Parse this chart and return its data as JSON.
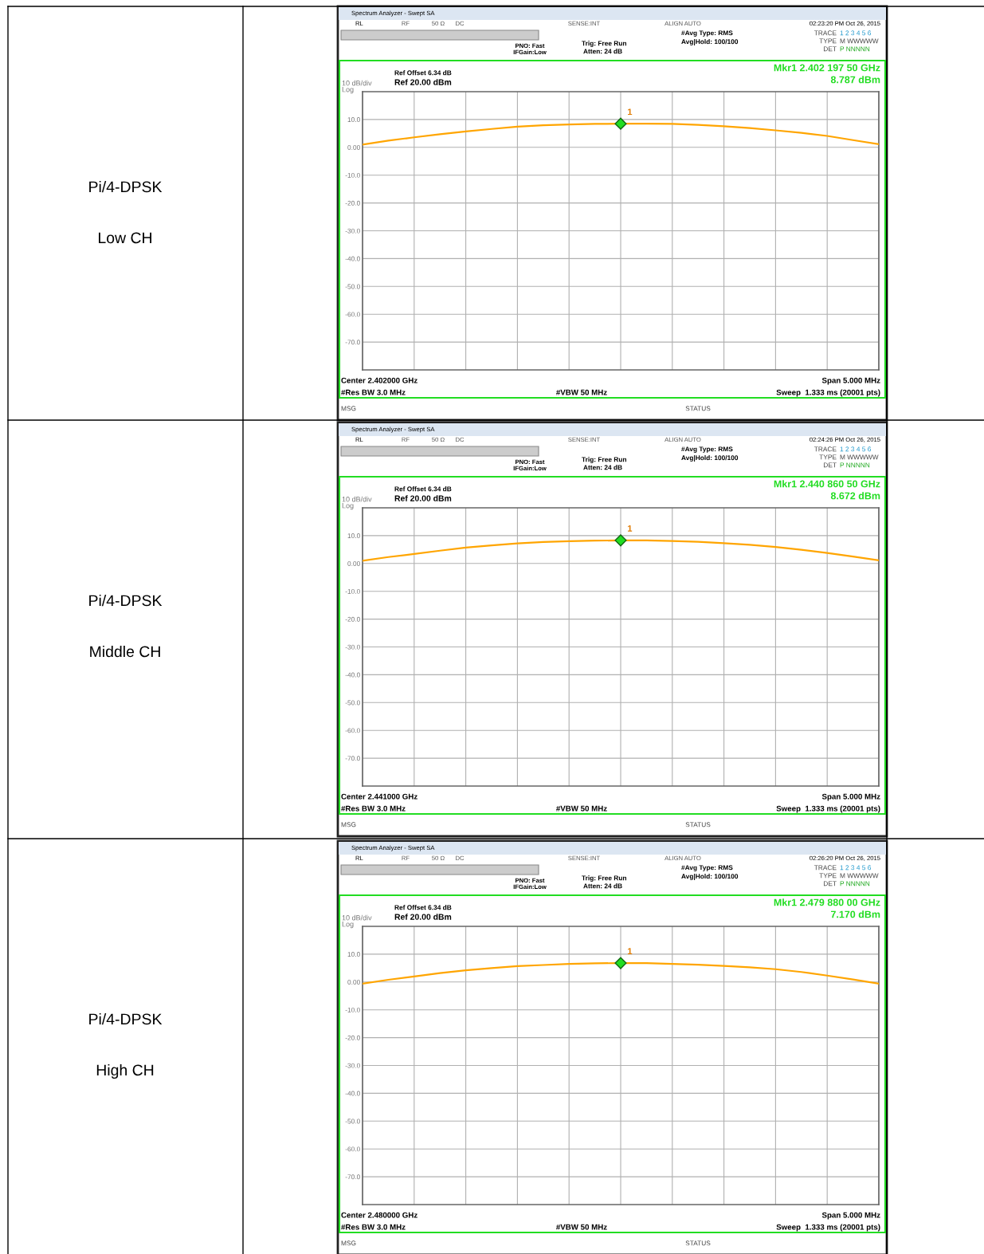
{
  "chart_data": [
    {
      "type": "line",
      "categories": [
        null,
        null,
        null,
        null,
        null,
        null,
        null,
        null,
        null,
        null,
        null,
        null,
        null,
        null,
        null,
        null,
        null,
        null,
        null,
        null,
        null
      ],
      "ylim": [
        -80,
        20
      ],
      "yticks": [
        {
          "value": 10,
          "label": "10.0"
        },
        {
          "value": 0,
          "label": "0.00"
        },
        {
          "value": -10,
          "label": "-10.0"
        },
        {
          "value": -20,
          "label": "-20.0"
        },
        {
          "value": -30,
          "label": "-30.0"
        },
        {
          "value": -40,
          "label": "-40.0"
        },
        {
          "value": -50,
          "label": "-50.0"
        },
        {
          "value": -60,
          "label": "-60.0"
        },
        {
          "value": -70,
          "label": "-70.0"
        }
      ],
      "tick_labels": "y",
      "grid": true,
      "series": [
        {
          "color": "#ffa500",
          "values": [
            1.0,
            2.4,
            3.6,
            4.7,
            5.7,
            6.6,
            7.4,
            7.9,
            8.2,
            8.4,
            8.5,
            8.5,
            8.4,
            8.1,
            7.6,
            6.9,
            6.1,
            5.2,
            4.1,
            2.6,
            1.1
          ]
        }
      ],
      "annotations": [
        "Spectrum Analyzer - Swept SA",
        "RL",
        "RF",
        "50 Ω",
        "DC",
        "SENSE:INT",
        "ALIGN AUTO",
        "02:23:20 PM Oct 26, 2015",
        "PNO: Fast",
        "IFGain:Low",
        "Trig: Free Run",
        "Atten: 24 dB",
        "#Avg Type: RMS",
        "Avg|Hold: 100/100",
        "TRACE",
        "1 2 3 4 5 6",
        "TYPE",
        "M WWWWW",
        "DET",
        "P NNNNN",
        "Ref Offset 6.34 dB",
        "Ref 20.00 dBm",
        "10 dB/div",
        "Log",
        "Mkr1 2.402 197 50 GHz",
        "8.787 dBm",
        "Center 2.402000 GHz",
        "Span 5.000 MHz",
        "#Res BW 3.0 MHz",
        "#VBW 50 MHz",
        "Sweep  1.333 ms (20001 pts)",
        "MSG",
        "STATUS",
        "1",
        "Pi/4-DPSK",
        "Low CH"
      ]
    },
    {
      "type": "line",
      "categories": [
        null,
        null,
        null,
        null,
        null,
        null,
        null,
        null,
        null,
        null,
        null,
        null,
        null,
        null,
        null,
        null,
        null,
        null,
        null,
        null,
        null
      ],
      "ylim": [
        -80,
        20
      ],
      "yticks": [
        {
          "value": 10,
          "label": "10.0"
        },
        {
          "value": 0,
          "label": "0.00"
        },
        {
          "value": -10,
          "label": "-10.0"
        },
        {
          "value": -20,
          "label": "-20.0"
        },
        {
          "value": -30,
          "label": "-30.0"
        },
        {
          "value": -40,
          "label": "-40.0"
        },
        {
          "value": -50,
          "label": "-50.0"
        },
        {
          "value": -60,
          "label": "-60.0"
        },
        {
          "value": -70,
          "label": "-70.0"
        }
      ],
      "tick_labels": "y",
      "grid": true,
      "series": [
        {
          "color": "#ffa500",
          "values": [
            1.0,
            2.3,
            3.4,
            4.6,
            5.7,
            6.5,
            7.2,
            7.7,
            8.0,
            8.2,
            8.3,
            8.3,
            8.1,
            7.8,
            7.3,
            6.7,
            5.9,
            4.9,
            3.8,
            2.5,
            1.1
          ]
        }
      ],
      "annotations": [
        "Spectrum Analyzer - Swept SA",
        "RL",
        "RF",
        "50 Ω",
        "DC",
        "SENSE:INT",
        "ALIGN AUTO",
        "02:24:26 PM Oct 26, 2015",
        "PNO: Fast",
        "IFGain:Low",
        "Trig: Free Run",
        "Atten: 24 dB",
        "#Avg Type: RMS",
        "Avg|Hold: 100/100",
        "TRACE",
        "1 2 3 4 5 6",
        "TYPE",
        "M WWWWW",
        "DET",
        "P NNNNN",
        "Ref Offset 6.34 dB",
        "Ref 20.00 dBm",
        "10 dB/div",
        "Log",
        "Mkr1 2.440 860 50 GHz",
        "8.672 dBm",
        "Center 2.441000 GHz",
        "Span 5.000 MHz",
        "#Res BW 3.0 MHz",
        "#VBW 50 MHz",
        "Sweep  1.333 ms (20001 pts)",
        "MSG",
        "STATUS",
        "1",
        "Pi/4-DPSK",
        "Middle CH"
      ]
    },
    {
      "type": "line",
      "categories": [
        null,
        null,
        null,
        null,
        null,
        null,
        null,
        null,
        null,
        null,
        null,
        null,
        null,
        null,
        null,
        null,
        null,
        null,
        null,
        null,
        null
      ],
      "ylim": [
        -80,
        20
      ],
      "yticks": [
        {
          "value": 10,
          "label": "10.0"
        },
        {
          "value": 0,
          "label": "0.00"
        },
        {
          "value": -10,
          "label": "-10.0"
        },
        {
          "value": -20,
          "label": "-20.0"
        },
        {
          "value": -30,
          "label": "-30.0"
        },
        {
          "value": -40,
          "label": "-40.0"
        },
        {
          "value": -50,
          "label": "-50.0"
        },
        {
          "value": -60,
          "label": "-60.0"
        },
        {
          "value": -70,
          "label": "-70.0"
        }
      ],
      "tick_labels": "y",
      "grid": true,
      "series": [
        {
          "color": "#ffa500",
          "values": [
            -0.6,
            0.8,
            2.0,
            3.2,
            4.2,
            5.0,
            5.7,
            6.1,
            6.5,
            6.7,
            6.8,
            6.8,
            6.5,
            6.2,
            5.8,
            5.3,
            4.6,
            3.6,
            2.3,
            0.9,
            -0.6
          ]
        }
      ],
      "annotations": [
        "Spectrum Analyzer - Swept SA",
        "RL",
        "RF",
        "50 Ω",
        "DC",
        "SENSE:INT",
        "ALIGN AUTO",
        "02:26:20 PM Oct 26, 2015",
        "PNO: Fast",
        "IFGain:Low",
        "Trig: Free Run",
        "Atten: 24 dB",
        "#Avg Type: RMS",
        "Avg|Hold: 100/100",
        "TRACE",
        "1 2 3 4 5 6",
        "TYPE",
        "M WWWWW",
        "DET",
        "P NNNNN",
        "Ref Offset 6.34 dB",
        "Ref 20.00 dBm",
        "10 dB/div",
        "Log",
        "Mkr1 2.479 880 00 GHz",
        "7.170 dBm",
        "Center 2.480000 GHz",
        "Span 5.000 MHz",
        "#Res BW 3.0 MHz",
        "#VBW 50 MHz",
        "Sweep  1.333 ms (20001 pts)",
        "MSG",
        "STATUS",
        "1",
        "Pi/4-DPSK",
        "High CH"
      ]
    }
  ]
}
